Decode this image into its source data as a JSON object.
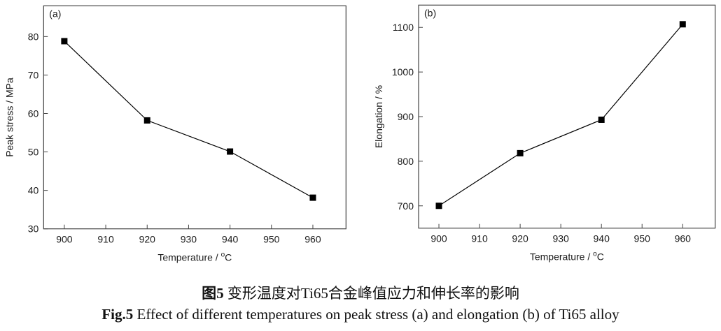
{
  "chart_data": [
    {
      "type": "line",
      "panel_label": "(a)",
      "x": [
        900,
        920,
        940,
        960
      ],
      "series": [
        {
          "values": [
            78.8,
            58.2,
            50.1,
            38.1
          ],
          "marker": "square",
          "color": "#000000"
        }
      ],
      "xlabel": "Temperature / ",
      "xlabel_unit_sup": "o",
      "xlabel_unit": "C",
      "ylabel": "Peak stress / MPa",
      "xlim": [
        895,
        968
      ],
      "ylim": [
        30,
        88
      ],
      "xticks": [
        900,
        910,
        920,
        930,
        940,
        950,
        960
      ],
      "yticks": [
        30,
        40,
        50,
        60,
        70,
        80
      ],
      "grid": false
    },
    {
      "type": "line",
      "panel_label": "(b)",
      "x": [
        900,
        920,
        940,
        960
      ],
      "series": [
        {
          "values": [
            700,
            818,
            893,
            1107
          ],
          "marker": "square",
          "color": "#000000"
        }
      ],
      "xlabel": "Temperature / ",
      "xlabel_unit_sup": "o",
      "xlabel_unit": "C",
      "ylabel": "Elongation / %",
      "xlim": [
        895,
        968
      ],
      "ylim": [
        650,
        1150
      ],
      "xticks": [
        900,
        910,
        920,
        930,
        940,
        950,
        960
      ],
      "yticks": [
        700,
        800,
        900,
        1000,
        1100
      ],
      "grid": false
    }
  ],
  "caption": {
    "cn_label": "图5",
    "cn_text": " 变形温度对Ti65合金峰值应力和伸长率的影响",
    "en_label": "Fig.5",
    "en_text": " Effect of different temperatures on peak stress (a) and elongation (b) of Ti65 alloy"
  }
}
